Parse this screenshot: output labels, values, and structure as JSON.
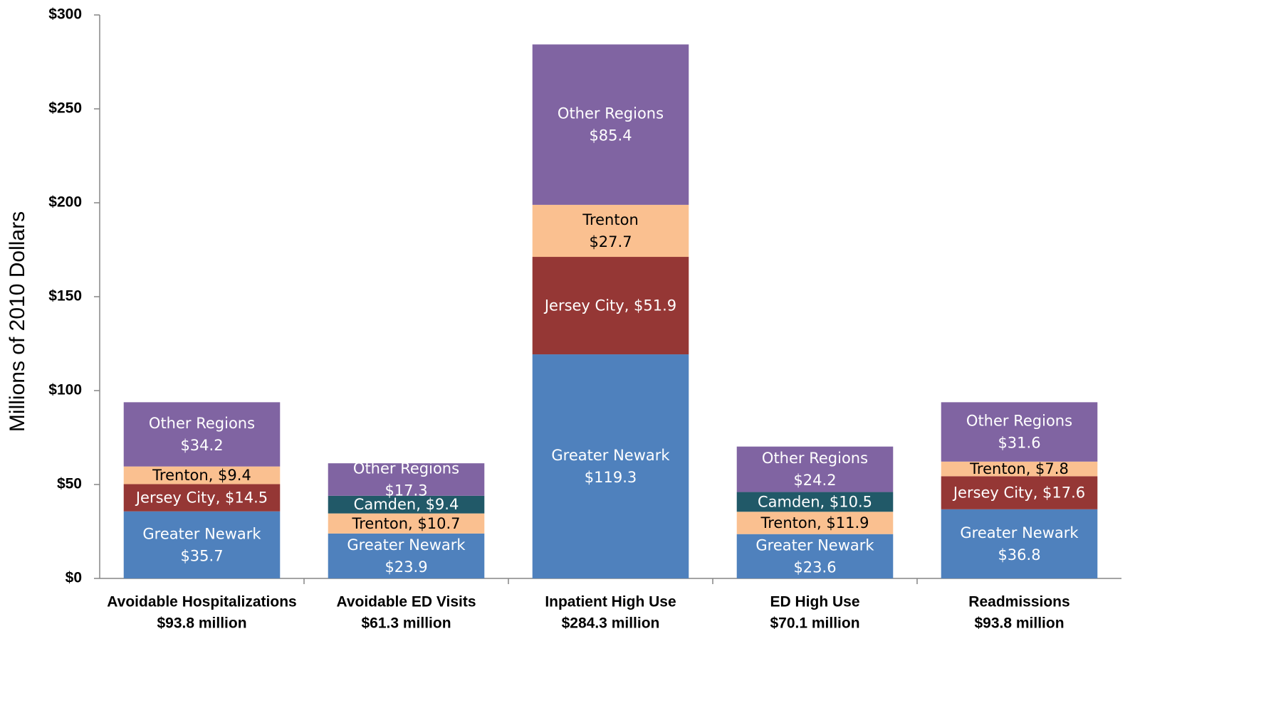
{
  "chart_data": {
    "type": "stacked_bar",
    "y_label": "Millions of 2010 Dollars",
    "categories": [
      "Avoidable Hospitalizations",
      "Avoidable ED Visits",
      "Inpatient High Use",
      "ED High Use",
      "Readmissions"
    ],
    "category_sublabels": [
      "$93.8 million",
      "$61.3 million",
      "$284.3 million",
      "$70.1 million",
      "$93.8 million"
    ],
    "series": [
      {
        "name": "Greater Newark",
        "color": "#4f81bd",
        "label_color": "#ffffff",
        "values": [
          35.7,
          23.9,
          119.3,
          23.6,
          36.8
        ],
        "value_labels": [
          "Greater Newark\n$35.7",
          "Greater Newark\n$23.9",
          "Greater Newark\n$119.3",
          "Greater Newark\n$23.6",
          "Greater Newark\n$36.8"
        ]
      },
      {
        "name": "Jersey City",
        "color": "#953735",
        "label_color": "#ffffff",
        "values": [
          14.5,
          null,
          51.9,
          null,
          17.6
        ],
        "value_labels": [
          "Jersey City, $14.5",
          null,
          "Jersey City, $51.9",
          null,
          "Jersey City, $17.6"
        ]
      },
      {
        "name": "Trenton",
        "color": "#fac090",
        "label_color": "#000000",
        "values": [
          9.4,
          10.7,
          27.7,
          11.9,
          7.8
        ],
        "value_labels": [
          "Trenton, $9.4",
          "Trenton, $10.7",
          "Trenton\n$27.7",
          "Trenton, $11.9",
          "Trenton, $7.8"
        ]
      },
      {
        "name": "Camden",
        "color": "#215968",
        "label_color": "#ffffff",
        "values": [
          null,
          9.4,
          null,
          10.5,
          null
        ],
        "value_labels": [
          null,
          "Camden, $9.4",
          null,
          "Camden, $10.5",
          null
        ]
      },
      {
        "name": "Other Regions",
        "color": "#8064a2",
        "label_color": "#ffffff",
        "values": [
          34.2,
          17.3,
          85.4,
          24.2,
          31.6
        ],
        "value_labels": [
          "Other Regions\n$34.2",
          "Other Regions\n$17.3",
          "Other Regions\n$85.4",
          "Other Regions\n$24.2",
          "Other Regions\n$31.6"
        ]
      }
    ],
    "ylim": [
      0,
      300
    ],
    "yticks": [
      {
        "value": 0,
        "label": "$0"
      },
      {
        "value": 50,
        "label": "$50"
      },
      {
        "value": 100,
        "label": "$100"
      },
      {
        "value": 150,
        "label": "$150"
      },
      {
        "value": 200,
        "label": "$200"
      },
      {
        "value": 250,
        "label": "$250"
      },
      {
        "value": 300,
        "label": "$300"
      }
    ],
    "grid": false
  }
}
